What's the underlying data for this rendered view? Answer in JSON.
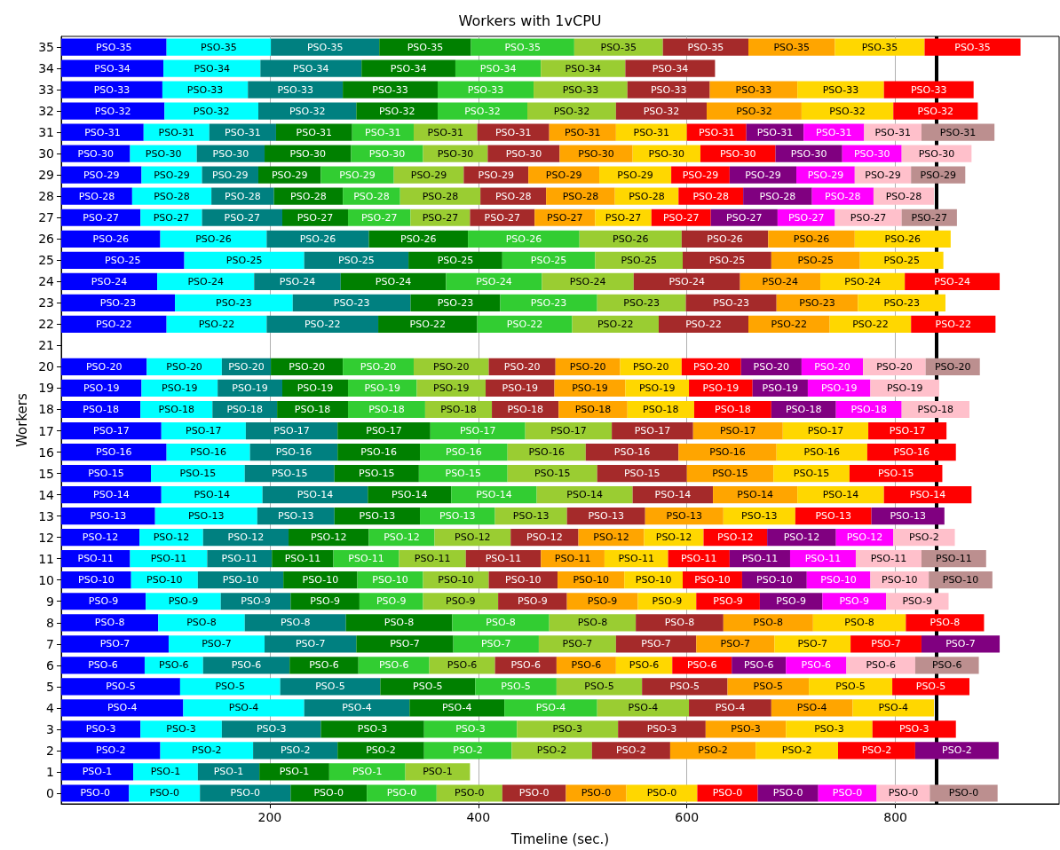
{
  "chart_data": {
    "type": "bar",
    "orientation": "horizontal",
    "stacked": true,
    "title": "Workers with 1vCPU",
    "xlabel": "Timeline (sec.)",
    "ylabel": "Workers",
    "grid": "x",
    "xlim": [
      0,
      957
    ],
    "xticks": [
      200,
      400,
      600,
      800
    ],
    "categories": [
      "35",
      "34",
      "33",
      "32",
      "31",
      "30",
      "29",
      "28",
      "27",
      "26",
      "25",
      "24",
      "23",
      "22",
      "21",
      "20",
      "19",
      "18",
      "17",
      "16",
      "15",
      "14",
      "13",
      "12",
      "11",
      "10",
      "9",
      "8",
      "7",
      "6",
      "5",
      "4",
      "3",
      "2",
      "1",
      "0"
    ],
    "ref_lines": [
      {
        "axis": "x",
        "value": 839,
        "color": "#000000"
      }
    ],
    "series": [
      {
        "color": "#0000ff",
        "values": [
          101,
          98,
          97,
          99,
          79,
          66,
          77,
          68,
          76,
          95,
          118,
          92,
          109,
          101,
          null,
          82,
          77,
          76,
          96,
          101,
          86,
          96,
          90,
          75,
          66,
          67,
          81,
          93,
          103,
          80,
          114,
          117,
          76,
          95,
          69,
          65
        ],
        "value_labels": [
          "PSO-35",
          "PSO-34",
          "PSO-33",
          "PSO-32",
          "PSO-31",
          "PSO-30",
          "PSO-29",
          "PSO-28",
          "PSO-27",
          "PSO-26",
          "PSO-25",
          "PSO-24",
          "PSO-23",
          "PSO-22",
          null,
          "PSO-20",
          "PSO-19",
          "PSO-18",
          "PSO-17",
          "PSO-16",
          "PSO-15",
          "PSO-14",
          "PSO-13",
          "PSO-12",
          "PSO-11",
          "PSO-10",
          "PSO-9",
          "PSO-8",
          "PSO-7",
          "PSO-6",
          "PSO-5",
          "PSO-4",
          "PSO-3",
          "PSO-2",
          "PSO-1",
          "PSO-0"
        ]
      },
      {
        "color": "#00ffff",
        "values": [
          100,
          93,
          82,
          90,
          63,
          64,
          58,
          76,
          59,
          102,
          115,
          93,
          113,
          96,
          null,
          72,
          73,
          69,
          81,
          80,
          90,
          97,
          98,
          61,
          74,
          64,
          72,
          83,
          92,
          56,
          96,
          116,
          78,
          89,
          62,
          68
        ],
        "value_labels": [
          "PSO-35",
          "PSO-34",
          "PSO-33",
          "PSO-32",
          "PSO-31",
          "PSO-30",
          "PSO-29",
          "PSO-28",
          "PSO-27",
          "PSO-26",
          "PSO-25",
          "PSO-24",
          "PSO-23",
          "PSO-22",
          null,
          "PSO-20",
          "PSO-19",
          "PSO-18",
          "PSO-17",
          "PSO-16",
          "PSO-15",
          "PSO-14",
          "PSO-13",
          "PSO-12",
          "PSO-11",
          "PSO-10",
          "PSO-9",
          "PSO-8",
          "PSO-7",
          "PSO-6",
          "PSO-5",
          "PSO-4",
          "PSO-3",
          "PSO-2",
          "PSO-1",
          "PSO-0"
        ]
      },
      {
        "color": "#008080",
        "values": [
          104,
          97,
          91,
          94,
          64,
          65,
          54,
          60,
          77,
          98,
          100,
          83,
          113,
          107,
          null,
          47,
          62,
          62,
          88,
          84,
          86,
          101,
          74,
          82,
          62,
          82,
          67,
          97,
          88,
          83,
          96,
          101,
          95,
          81,
          59,
          87
        ],
        "value_labels": [
          "PSO-35",
          "PSO-34",
          "PSO-33",
          "PSO-32",
          "PSO-31",
          "PSO-30",
          "PSO-29",
          "PSO-28",
          "PSO-27",
          "PSO-26",
          "PSO-25",
          "PSO-24",
          "PSO-23",
          "PSO-22",
          null,
          "PSO-20",
          "PSO-19",
          "PSO-18",
          "PSO-17",
          "PSO-16",
          "PSO-15",
          "PSO-14",
          "PSO-13",
          "PSO-12",
          "PSO-11",
          "PSO-10",
          "PSO-9",
          "PSO-8",
          "PSO-7",
          "PSO-6",
          "PSO-5",
          "PSO-4",
          "PSO-3",
          "PSO-2",
          "PSO-1",
          "PSO-0"
        ]
      },
      {
        "color": "#008000",
        "values": [
          88,
          90,
          91,
          78,
          73,
          83,
          60,
          66,
          63,
          95,
          90,
          101,
          86,
          95,
          null,
          69,
          63,
          68,
          89,
          79,
          81,
          80,
          82,
          77,
          59,
          71,
          66,
          102,
          93,
          66,
          91,
          91,
          99,
          83,
          67,
          73
        ],
        "value_labels": [
          "PSO-35",
          "PSO-34",
          "PSO-33",
          "PSO-32",
          "PSO-31",
          "PSO-30",
          "PSO-29",
          "PSO-28",
          "PSO-27",
          "PSO-26",
          "PSO-25",
          "PSO-24",
          "PSO-23",
          "PSO-22",
          null,
          "PSO-20",
          "PSO-19",
          "PSO-18",
          "PSO-17",
          "PSO-16",
          "PSO-15",
          "PSO-14",
          "PSO-13",
          "PSO-12",
          "PSO-11",
          "PSO-10",
          "PSO-9",
          "PSO-8",
          "PSO-7",
          "PSO-6",
          "PSO-5",
          "PSO-4",
          "PSO-3",
          "PSO-2",
          "PSO-1",
          "PSO-0"
        ]
      },
      {
        "color": "#32cd32",
        "values": [
          99,
          82,
          92,
          86,
          59,
          69,
          70,
          55,
          60,
          107,
          89,
          92,
          93,
          91,
          null,
          68,
          66,
          74,
          91,
          84,
          85,
          82,
          72,
          63,
          63,
          63,
          61,
          93,
          82,
          68,
          78,
          89,
          89,
          84,
          73,
          67
        ],
        "value_labels": [
          "PSO-35",
          "PSO-34",
          "PSO-33",
          "PSO-32",
          "PSO-31",
          "PSO-30",
          "PSO-29",
          "PSO-28",
          "PSO-27",
          "PSO-26",
          "PSO-25",
          "PSO-24",
          "PSO-23",
          "PSO-22",
          null,
          "PSO-20",
          "PSO-19",
          "PSO-18",
          "PSO-17",
          "PSO-16",
          "PSO-15",
          "PSO-14",
          "PSO-13",
          "PSO-12",
          "PSO-11",
          "PSO-10",
          "PSO-9",
          "PSO-8",
          "PSO-7",
          "PSO-6",
          "PSO-5",
          "PSO-4",
          "PSO-3",
          "PSO-2",
          "PSO-1",
          "PSO-0"
        ]
      },
      {
        "color": "#9acd32",
        "values": [
          85,
          81,
          90,
          85,
          61,
          62,
          67,
          77,
          57,
          98,
          84,
          88,
          85,
          83,
          null,
          72,
          66,
          64,
          83,
          75,
          86,
          92,
          69,
          73,
          64,
          63,
          72,
          83,
          74,
          63,
          82,
          88,
          97,
          77,
          62,
          63
        ],
        "value_labels": [
          "PSO-35",
          "PSO-34",
          "PSO-33",
          "PSO-32",
          "PSO-31",
          "PSO-30",
          "PSO-29",
          "PSO-28",
          "PSO-27",
          "PSO-26",
          "PSO-25",
          "PSO-24",
          "PSO-23",
          "PSO-22",
          null,
          "PSO-20",
          "PSO-19",
          "PSO-18",
          "PSO-17",
          "PSO-16",
          "PSO-15",
          "PSO-14",
          "PSO-13",
          "PSO-12",
          "PSO-11",
          "PSO-10",
          "PSO-9",
          "PSO-8",
          "PSO-7",
          "PSO-6",
          "PSO-5",
          "PSO-4",
          "PSO-3",
          "PSO-2",
          "PSO-1",
          "PSO-0"
        ]
      },
      {
        "color": "#a52a2a",
        "values": [
          82,
          86,
          79,
          87,
          69,
          69,
          62,
          63,
          62,
          83,
          85,
          102,
          87,
          86,
          null,
          64,
          66,
          64,
          78,
          89,
          86,
          77,
          75,
          65,
          72,
          66,
          66,
          84,
          77,
          59,
          82,
          79,
          84,
          75,
          null,
          61
        ],
        "value_labels": [
          "PSO-35",
          "PSO-34",
          "PSO-33",
          "PSO-32",
          "PSO-31",
          "PSO-30",
          "PSO-29",
          "PSO-28",
          "PSO-27",
          "PSO-26",
          "PSO-25",
          "PSO-24",
          "PSO-23",
          "PSO-22",
          null,
          "PSO-20",
          "PSO-19",
          "PSO-18",
          "PSO-17",
          "PSO-16",
          "PSO-15",
          "PSO-14",
          "PSO-13",
          "PSO-12",
          "PSO-11",
          "PSO-10",
          "PSO-9",
          "PSO-8",
          "PSO-7",
          "PSO-6",
          "PSO-5",
          "PSO-4",
          "PSO-3",
          "PSO-2",
          null,
          "PSO-0"
        ]
      },
      {
        "color": "#ffa500",
        "values": [
          83,
          null,
          84,
          91,
          64,
          70,
          68,
          66,
          58,
          83,
          85,
          77,
          78,
          78,
          null,
          62,
          68,
          66,
          86,
          94,
          83,
          81,
          75,
          63,
          61,
          64,
          68,
          86,
          75,
          57,
          78,
          78,
          77,
          82,
          null,
          58
        ],
        "value_labels": [
          "PSO-35",
          null,
          "PSO-33",
          "PSO-32",
          "PSO-31",
          "PSO-30",
          "PSO-29",
          "PSO-28",
          "PSO-27",
          "PSO-26",
          "PSO-25",
          "PSO-24",
          "PSO-23",
          "PSO-22",
          null,
          "PSO-20",
          "PSO-19",
          "PSO-18",
          "PSO-17",
          "PSO-16",
          "PSO-15",
          "PSO-14",
          "PSO-13",
          "PSO-12",
          "PSO-11",
          "PSO-10",
          "PSO-9",
          "PSO-8",
          "PSO-7",
          "PSO-6",
          "PSO-5",
          "PSO-4",
          "PSO-3",
          "PSO-2",
          null,
          "PSO-0"
        ]
      },
      {
        "color": "#ffd700",
        "values": [
          86,
          null,
          83,
          88,
          68,
          65,
          69,
          61,
          54,
          92,
          80,
          81,
          84,
          78,
          null,
          59,
          61,
          64,
          82,
          87,
          73,
          83,
          69,
          57,
          61,
          56,
          56,
          89,
          73,
          54,
          80,
          78,
          83,
          79,
          null,
          68
        ],
        "value_labels": [
          "PSO-35",
          null,
          "PSO-33",
          "PSO-32",
          "PSO-31",
          "PSO-30",
          "PSO-29",
          "PSO-28",
          "PSO-27",
          "PSO-26",
          "PSO-25",
          "PSO-24",
          "PSO-23",
          "PSO-22",
          null,
          "PSO-20",
          "PSO-19",
          "PSO-18",
          "PSO-17",
          "PSO-16",
          "PSO-15",
          "PSO-14",
          "PSO-13",
          "PSO-12",
          "PSO-11",
          "PSO-10",
          "PSO-9",
          "PSO-8",
          "PSO-7",
          "PSO-6",
          "PSO-5",
          "PSO-4",
          "PSO-3",
          "PSO-2",
          null,
          "PSO-0"
        ]
      },
      {
        "color": "#ff0000",
        "values": [
          92,
          null,
          86,
          81,
          57,
          72,
          56,
          62,
          57,
          null,
          null,
          91,
          null,
          81,
          null,
          57,
          61,
          74,
          75,
          85,
          89,
          84,
          73,
          61,
          59,
          57,
          61,
          75,
          68,
          57,
          74,
          null,
          80,
          74,
          null,
          58
        ],
        "value_labels": [
          "PSO-35",
          null,
          "PSO-33",
          "PSO-32",
          "PSO-31",
          "PSO-30",
          "PSO-29",
          "PSO-28",
          "PSO-27",
          null,
          null,
          "PSO-24",
          null,
          "PSO-22",
          null,
          "PSO-20",
          "PSO-19",
          "PSO-18",
          "PSO-17",
          "PSO-16",
          "PSO-15",
          "PSO-14",
          "PSO-13",
          "PSO-12",
          "PSO-11",
          "PSO-10",
          "PSO-9",
          "PSO-8",
          "PSO-7",
          "PSO-6",
          "PSO-5",
          null,
          "PSO-3",
          "PSO-2",
          null,
          "PSO-0"
        ]
      },
      {
        "color": "#800080",
        "values": [
          null,
          null,
          null,
          null,
          55,
          64,
          64,
          66,
          64,
          null,
          null,
          null,
          null,
          null,
          null,
          58,
          53,
          62,
          null,
          null,
          null,
          null,
          70,
          66,
          58,
          62,
          60,
          null,
          75,
          52,
          null,
          null,
          null,
          80,
          null,
          58
        ],
        "value_labels": [
          null,
          null,
          null,
          null,
          "PSO-31",
          "PSO-30",
          "PSO-29",
          "PSO-28",
          "PSO-27",
          null,
          null,
          null,
          null,
          null,
          null,
          "PSO-20",
          "PSO-19",
          "PSO-18",
          null,
          null,
          null,
          null,
          "PSO-13",
          "PSO-12",
          "PSO-11",
          "PSO-10",
          "PSO-9",
          null,
          "PSO-7",
          "PSO-6",
          null,
          null,
          null,
          "PSO-2",
          null,
          "PSO-0"
        ]
      },
      {
        "color": "#ff00ff",
        "values": [
          null,
          null,
          null,
          null,
          58,
          57,
          56,
          59,
          55,
          null,
          null,
          null,
          null,
          null,
          null,
          59,
          60,
          63,
          null,
          null,
          null,
          null,
          null,
          55,
          63,
          61,
          61,
          null,
          null,
          58,
          null,
          null,
          null,
          null,
          null,
          56
        ],
        "value_labels": [
          null,
          null,
          null,
          null,
          "PSO-31",
          "PSO-30",
          "PSO-29",
          "PSO-28",
          "PSO-27",
          null,
          null,
          null,
          null,
          null,
          null,
          "PSO-20",
          "PSO-19",
          "PSO-18",
          null,
          null,
          null,
          null,
          null,
          "PSO-12",
          "PSO-11",
          "PSO-10",
          "PSO-9",
          null,
          null,
          "PSO-6",
          null,
          null,
          null,
          null,
          null,
          "PSO-0"
        ]
      },
      {
        "color": "#ffc0cb",
        "values": [
          null,
          null,
          null,
          null,
          55,
          67,
          54,
          58,
          64,
          null,
          null,
          null,
          null,
          null,
          null,
          60,
          66,
          65,
          null,
          null,
          null,
          null,
          null,
          59,
          63,
          56,
          60,
          null,
          null,
          66,
          null,
          null,
          null,
          null,
          null,
          51
        ],
        "value_labels": [
          null,
          null,
          null,
          null,
          "PSO-31",
          "PSO-30",
          "PSO-29",
          "PSO-28",
          "PSO-27",
          null,
          null,
          null,
          null,
          null,
          null,
          "PSO-20",
          "PSO-19",
          "PSO-18",
          null,
          null,
          null,
          null,
          null,
          "PSO-2",
          "PSO-11",
          "PSO-10",
          "PSO-9",
          null,
          null,
          "PSO-6",
          null,
          null,
          null,
          null,
          null,
          "PSO-0"
        ]
      },
      {
        "color": "#bc8f8f",
        "values": [
          null,
          null,
          null,
          null,
          70,
          null,
          52,
          null,
          53,
          null,
          null,
          null,
          null,
          null,
          null,
          52,
          null,
          null,
          null,
          null,
          null,
          null,
          null,
          null,
          62,
          61,
          null,
          null,
          null,
          61,
          null,
          null,
          null,
          null,
          null,
          65
        ],
        "value_labels": [
          null,
          null,
          null,
          null,
          "PSO-31",
          null,
          "PSO-29",
          null,
          "PSO-27",
          null,
          null,
          null,
          null,
          null,
          null,
          "PSO-20",
          null,
          null,
          null,
          null,
          null,
          null,
          null,
          null,
          "PSO-11",
          "PSO-10",
          null,
          null,
          null,
          "PSO-6",
          null,
          null,
          null,
          null,
          null,
          "PSO-0"
        ]
      }
    ]
  }
}
